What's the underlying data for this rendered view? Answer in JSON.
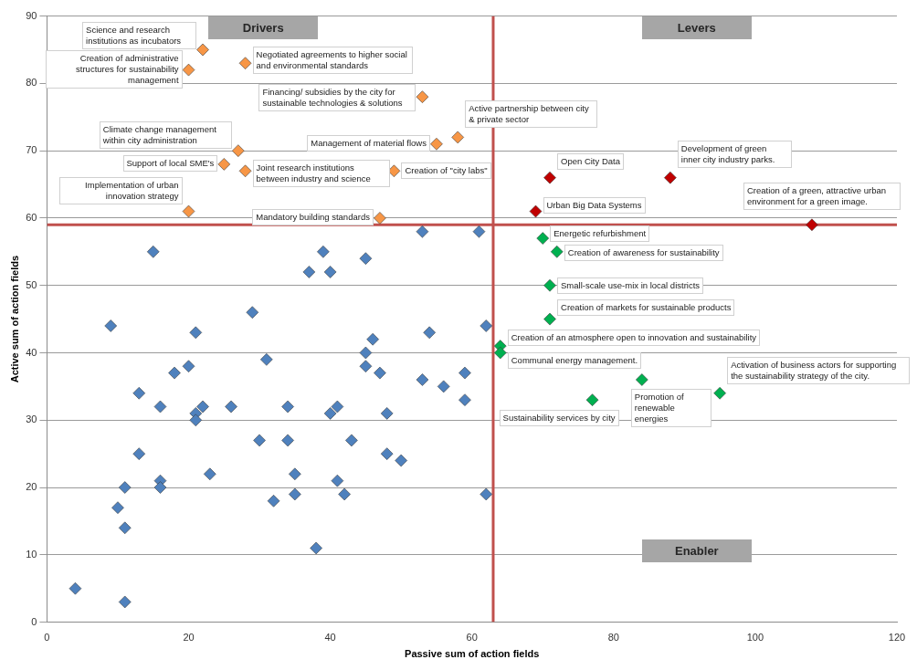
{
  "chart_data": {
    "type": "scatter",
    "xlabel": "Passive sum of action fields",
    "ylabel": "Active sum of action fields",
    "xlim": [
      0,
      120
    ],
    "ylim": [
      0,
      90
    ],
    "xticks": [
      0,
      20,
      40,
      60,
      80,
      100,
      120
    ],
    "yticks": [
      0,
      10,
      20,
      30,
      40,
      50,
      60,
      70,
      80,
      90
    ],
    "grid": "y",
    "legend": false,
    "marker": "diamond",
    "series": [
      {
        "color": "#4f81bd",
        "x": [
          4,
          11,
          10,
          11,
          11,
          9,
          15,
          13,
          13,
          16,
          16,
          16,
          18,
          20,
          21,
          21,
          21,
          22,
          23,
          26,
          29,
          30,
          31,
          32,
          34,
          34,
          35,
          35,
          38,
          37,
          39,
          40,
          40,
          41,
          41,
          42,
          43,
          45,
          45,
          45,
          46,
          47,
          48,
          48,
          50,
          53,
          53,
          54,
          56,
          59,
          59,
          61,
          62,
          62
        ],
        "values": [
          5,
          3,
          17,
          14,
          20,
          44,
          55,
          34,
          25,
          32,
          21,
          20,
          37,
          38,
          43,
          31,
          30,
          32,
          22,
          32,
          46,
          27,
          39,
          18,
          32,
          27,
          22,
          19,
          11,
          52,
          55,
          52,
          31,
          32,
          21,
          19,
          27,
          54,
          40,
          38,
          42,
          37,
          31,
          25,
          24,
          58,
          36,
          43,
          35,
          37,
          33,
          58,
          44,
          19
        ]
      },
      {
        "color": "#f79646",
        "x": [
          22,
          20,
          28,
          53,
          55,
          58,
          27,
          25,
          28,
          49,
          20,
          47
        ],
        "values": [
          85,
          82,
          83,
          78,
          71,
          72,
          70,
          68,
          67,
          67,
          61,
          60
        ]
      },
      {
        "color": "#c00000",
        "x": [
          71,
          88,
          69,
          108
        ],
        "values": [
          66,
          66,
          61,
          59
        ]
      },
      {
        "color": "#00b050",
        "x": [
          70,
          72,
          71,
          71,
          64,
          64,
          84,
          77,
          95
        ],
        "values": [
          57,
          55,
          50,
          45,
          41,
          40,
          36,
          33,
          34
        ]
      }
    ],
    "ref_lines": [
      {
        "axis": "x",
        "value": 63,
        "color": "#c0504d"
      },
      {
        "axis": "y",
        "value": 59,
        "color": "#c0504d"
      }
    ],
    "annotations": [
      "Drivers",
      "Levers",
      "Enabler",
      {
        "text": "Science and research institutions as incubators",
        "x": 22,
        "y": 85
      },
      {
        "text": "Negotiated agreements to higher social and  environmental standards",
        "x": 28,
        "y": 83
      },
      {
        "text": "Creation of administrative structures for sustainability management",
        "x": 20,
        "y": 82
      },
      {
        "text": "Financing/ subsidies by the city for sustainable technologies & solutions",
        "x": 53,
        "y": 78
      },
      {
        "text": "Climate change management within city administration",
        "x": 27,
        "y": 70
      },
      {
        "text": "Management of material flows",
        "x": 55,
        "y": 71
      },
      {
        "text": "Active partnership between city & private sector",
        "x": 58,
        "y": 72
      },
      {
        "text": "Support of local SME's",
        "x": 25,
        "y": 68
      },
      {
        "text": "Joint research institutions between industry and science",
        "x": 28,
        "y": 67
      },
      {
        "text": "Creation of \"city labs\"",
        "x": 49,
        "y": 67
      },
      {
        "text": "Implementation of urban innovation strategy",
        "x": 20,
        "y": 61
      },
      {
        "text": "Mandatory building standards",
        "x": 47,
        "y": 60
      },
      {
        "text": "Open City Data",
        "x": 71,
        "y": 66
      },
      {
        "text": "Development of green inner city industry parks.",
        "x": 88,
        "y": 66
      },
      {
        "text": "Urban Big Data Systems",
        "x": 69,
        "y": 61
      },
      {
        "text": "Creation of a green, attractive urban environment for a green image.",
        "x": 108,
        "y": 59
      },
      {
        "text": "Energetic refurbishment",
        "x": 70,
        "y": 57
      },
      {
        "text": "Creation of awareness for sustainability",
        "x": 72,
        "y": 55
      },
      {
        "text": "Small-scale use-mix in local districts",
        "x": 71,
        "y": 50
      },
      {
        "text": "Creation of markets for sustainable products",
        "x": 71,
        "y": 45
      },
      {
        "text": "Creation of an atmosphere open to innovation and sustainability",
        "x": 64,
        "y": 41
      },
      {
        "text": "Communal energy management.",
        "x": 64,
        "y": 40
      },
      {
        "text": "Activation of business actors for supporting the sustainability strategy of the city.",
        "x": 95,
        "y": 34
      },
      {
        "text": "Promotion of renewable energies",
        "x": 84,
        "y": 36
      },
      {
        "text": "Sustainability services by city",
        "x": 77,
        "y": 33
      }
    ]
  }
}
